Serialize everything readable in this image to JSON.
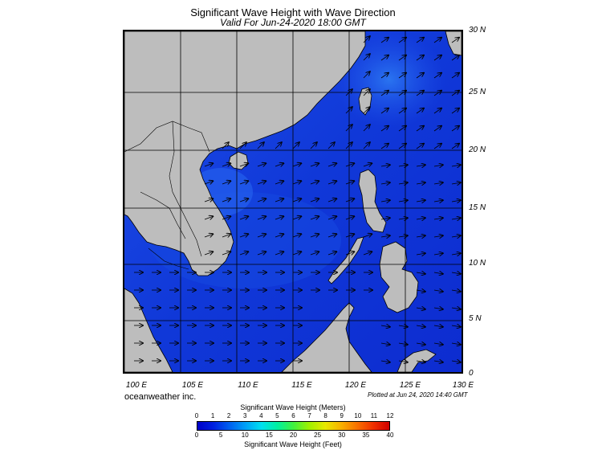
{
  "header": {
    "title": "Significant Wave Height with Wave Direction",
    "subtitle": "Valid For Jun-24-2020 18:00 GMT"
  },
  "map": {
    "lat_labels": [
      "30 N",
      "25 N",
      "20 N",
      "15 N",
      "10 N",
      "5 N",
      "0"
    ],
    "lon_labels": [
      "100 E",
      "105 E",
      "110 E",
      "115 E",
      "120 E",
      "125 E",
      "130 E"
    ],
    "region": "South China Sea",
    "land_color": "#bdbdbd",
    "grid_color": "#000000"
  },
  "footer": {
    "company": "oceanweather inc.",
    "plotted": "Plotted at Jun 24, 2020 14:40 GMT"
  },
  "scale": {
    "meters_title": "Significant Wave Height (Meters)",
    "feet_title": "Significant Wave Height (Feet)",
    "meters_ticks": [
      "0",
      "1",
      "2",
      "3",
      "4",
      "5",
      "6",
      "7",
      "8",
      "9",
      "10",
      "11",
      "12"
    ],
    "feet_ticks": [
      "0",
      "5",
      "10",
      "15",
      "20",
      "25",
      "30",
      "35",
      "40"
    ],
    "colors": [
      "#0000c8",
      "#0020e0",
      "#0060f0",
      "#00a0f8",
      "#00e0f0",
      "#00f0a0",
      "#40f040",
      "#a0f000",
      "#e8e800",
      "#f8b000",
      "#f87000",
      "#f03000",
      "#d00000"
    ]
  }
}
